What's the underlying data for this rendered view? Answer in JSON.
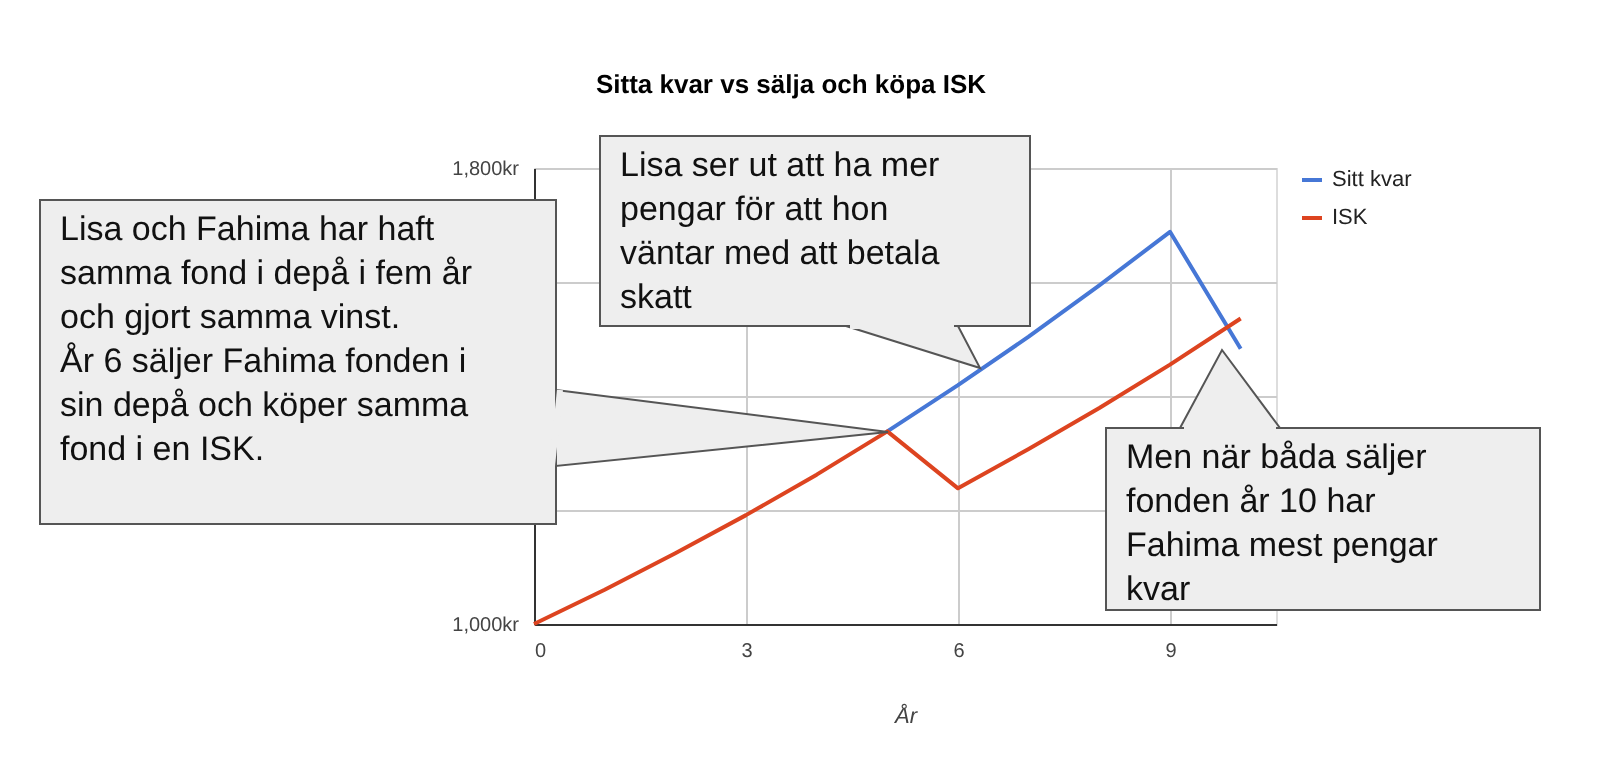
{
  "chart_data": {
    "type": "line",
    "title": "Sitta kvar vs sälja och köpa ISK",
    "xlabel": "År",
    "x": [
      0,
      1,
      2,
      3,
      4,
      5,
      6,
      7,
      8,
      9,
      10
    ],
    "series": [
      {
        "name": "Sitt kvar",
        "color": "#4677d6",
        "values": [
          null,
          null,
          null,
          null,
          null,
          1338,
          1419,
          1504,
          1594,
          1688,
          1483
        ]
      },
      {
        "name": "ISK",
        "color": "#dd4420",
        "values": [
          1000,
          1060,
          1124,
          1191,
          1262,
          1338,
          1238,
          1307,
          1379,
          1455,
          1536
        ]
      }
    ],
    "xlim": [
      0,
      10.5
    ],
    "xticks": [
      0,
      3,
      6,
      9
    ],
    "ylim": [
      1000,
      1800
    ],
    "yticks": [
      {
        "value": 1000,
        "label": "1,000kr"
      },
      {
        "value": 1200,
        "label": null
      },
      {
        "value": 1400,
        "label": null
      },
      {
        "value": 1600,
        "label": null
      },
      {
        "value": 1800,
        "label": "1,800kr"
      }
    ],
    "grid": true,
    "legend": "top right",
    "marker": "none",
    "line_style": "solid",
    "annotations": [
      "Lisa och Fahima har haft\nsamma fond i depå i fem år\noch gjort samma vinst.\n\nÅr 6 säljer Fahima fonden i\nsin depå och köper samma\nfond i en ISK.",
      "Lisa ser ut att ha mer\npengar för att hon\nväntar med att betala\nskatt",
      "Men när båda säljer\nfonden år 10 har\nFahima mest pengar\nkvar"
    ]
  }
}
